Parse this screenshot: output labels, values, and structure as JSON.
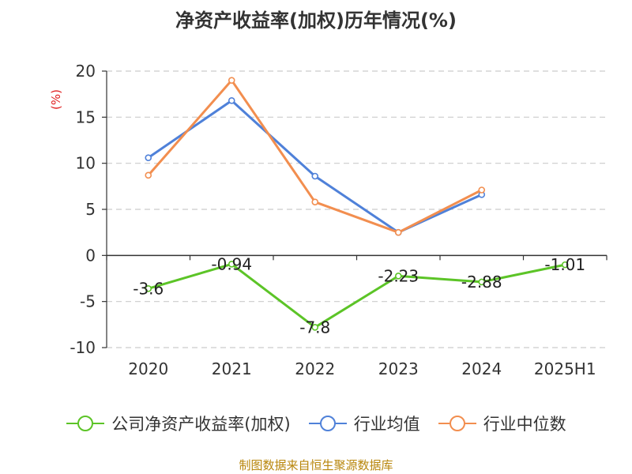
{
  "chart_data": {
    "type": "line",
    "title": "净资产收益率(加权)历年情况(%)",
    "ylabel": "(%)",
    "xlabel": "",
    "categories": [
      "2020",
      "2021",
      "2022",
      "2023",
      "2024",
      "2025H1"
    ],
    "y_ticks": [
      "20",
      "15",
      "10",
      "5",
      "0",
      "-5",
      "-10"
    ],
    "ylim": [
      -10,
      20
    ],
    "grid": true,
    "legend_position": "bottom",
    "series": [
      {
        "name": "公司净资产收益率(加权)",
        "color": "#5cc427",
        "values": [
          -3.6,
          -0.94,
          -7.8,
          -2.23,
          -2.88,
          -1.01
        ],
        "labels": [
          "-3.6",
          "-0.94",
          "-7.8",
          "-2.23",
          "-2.88",
          "-1.01"
        ]
      },
      {
        "name": "行业均值",
        "color": "#4f81d9",
        "values": [
          10.6,
          16.8,
          8.6,
          2.5,
          6.6,
          null
        ]
      },
      {
        "name": "行业中位数",
        "color": "#f28e4f",
        "values": [
          8.7,
          19.0,
          5.8,
          2.5,
          7.1,
          null
        ]
      }
    ]
  },
  "source_text": "制图数据来自恒生聚源数据库"
}
